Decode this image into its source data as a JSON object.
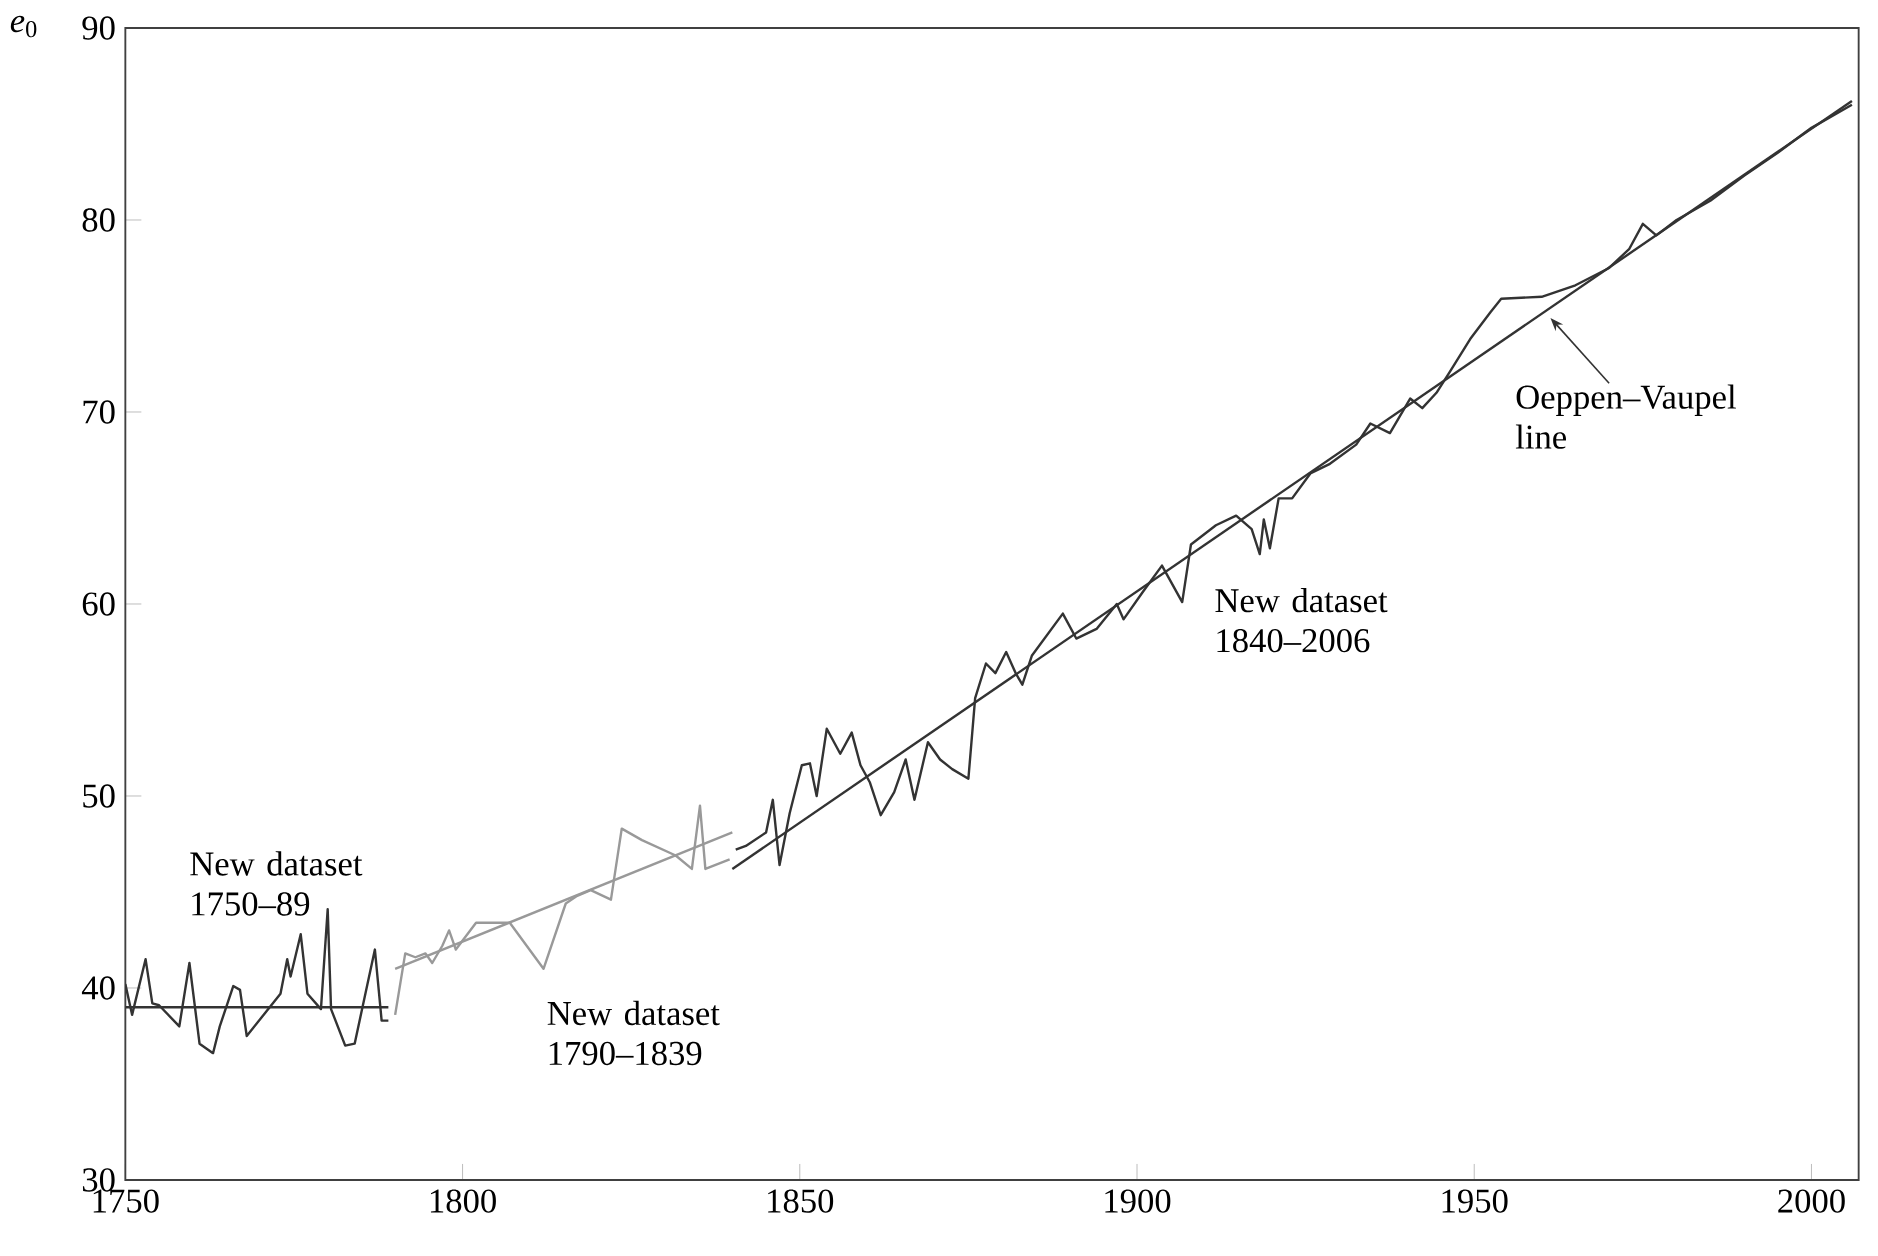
{
  "chart_data": {
    "type": "line",
    "ylabel": "*e*$_{0}$",
    "xlim": [
      1750,
      2007
    ],
    "ylim": [
      30,
      90
    ],
    "xticks": [
      1750,
      1800,
      1850,
      1900,
      1950,
      2000
    ],
    "yticks": [
      30,
      40,
      50,
      60,
      70,
      80,
      90
    ],
    "grid": false,
    "legend": false,
    "marker": "none",
    "line_style": "solid",
    "series": [
      {
        "name": "New dataset 1750–89",
        "color": "#333333",
        "x": [
          1750,
          1751,
          1753,
          1754,
          1755,
          1758,
          1759.5,
          1761,
          1763,
          1764,
          1766,
          1767,
          1768,
          1773,
          1774,
          1774.5,
          1776,
          1777,
          1779,
          1780,
          1780.5,
          1782.6,
          1784,
          1787,
          1788,
          1789
        ],
        "values": [
          40.2,
          38.6,
          41.5,
          39.2,
          39.1,
          38.0,
          41.3,
          37.1,
          36.6,
          38.0,
          40.1,
          39.9,
          37.5,
          39.7,
          41.5,
          40.6,
          42.8,
          39.7,
          38.9,
          44.1,
          38.9,
          37.0,
          37.1,
          42.0,
          38.3,
          38.3
        ]
      },
      {
        "color": "#333333",
        "x": [
          1750,
          1789
        ],
        "values": [
          39.0,
          39.0
        ]
      },
      {
        "name": "New dataset 1790–1839",
        "color": "#999999",
        "x": [
          1790,
          1791.5,
          1793,
          1794.5,
          1795.5,
          1797,
          1798,
          1799,
          1802,
          1807,
          1812,
          1815.3,
          1817,
          1819,
          1822,
          1823.6,
          1826.6,
          1831.6,
          1834,
          1835.2,
          1836,
          1839.6
        ],
        "values": [
          38.6,
          41.8,
          41.6,
          41.8,
          41.3,
          42.2,
          43.0,
          42.0,
          43.4,
          43.4,
          41.0,
          44.4,
          44.8,
          45.1,
          44.6,
          48.3,
          47.7,
          46.9,
          46.2,
          49.5,
          46.2,
          46.7
        ]
      },
      {
        "color": "#999999",
        "x": [
          1790,
          1840
        ],
        "values": [
          41.0,
          48.1
        ]
      },
      {
        "name": "New dataset 1840–2006",
        "color": "#333333",
        "x": [
          1840.5,
          1842,
          1845,
          1846,
          1847,
          1848.5,
          1850.3,
          1851.5,
          1852.5,
          1854,
          1856,
          1857.7,
          1859,
          1860.4,
          1862,
          1864,
          1865.7,
          1867,
          1869,
          1870.8,
          1872.6,
          1875,
          1876,
          1877.6,
          1879,
          1880.6,
          1882,
          1883,
          1884.4,
          1889,
          1891,
          1894,
          1897,
          1898,
          1900.8,
          1903.7,
          1906.7,
          1908,
          1911.7,
          1914.7,
          1917,
          1918.2,
          1918.8,
          1919.7,
          1921,
          1923,
          1925.7,
          1928.6,
          1932.5,
          1934.6,
          1937.5,
          1940.5,
          1942.3,
          1944.4,
          1946.4,
          1949.4,
          1952.4,
          1954,
          1960,
          1965,
          1970,
          1973,
          1975,
          1977,
          1980,
          1985,
          1990,
          1995,
          2000,
          2006
        ],
        "values": [
          47.2,
          47.4,
          48.1,
          49.8,
          46.4,
          49.1,
          51.6,
          51.7,
          50.0,
          53.5,
          52.2,
          53.3,
          51.6,
          50.7,
          49.0,
          50.2,
          51.9,
          49.8,
          52.8,
          51.9,
          51.4,
          50.9,
          55.1,
          56.9,
          56.4,
          57.5,
          56.4,
          55.8,
          57.3,
          59.5,
          58.2,
          58.7,
          60.0,
          59.2,
          60.6,
          62.0,
          60.1,
          63.1,
          64.1,
          64.6,
          63.9,
          62.6,
          64.4,
          62.9,
          65.5,
          65.5,
          66.8,
          67.3,
          68.3,
          69.4,
          68.9,
          70.7,
          70.2,
          71.0,
          72.1,
          73.8,
          75.2,
          75.9,
          76.0,
          76.6,
          77.5,
          78.5,
          79.8,
          79.2,
          80.0,
          81.0,
          82.3,
          83.5,
          84.8,
          86.0
        ]
      },
      {
        "color": "#333333",
        "x": [
          1840,
          2006
        ],
        "values": [
          46.2,
          86.2
        ]
      }
    ],
    "annotations": [
      {
        "text": "Oeppen–Vaupel line",
        "x": 1961.3,
        "y": 74.9
      }
    ]
  }
}
